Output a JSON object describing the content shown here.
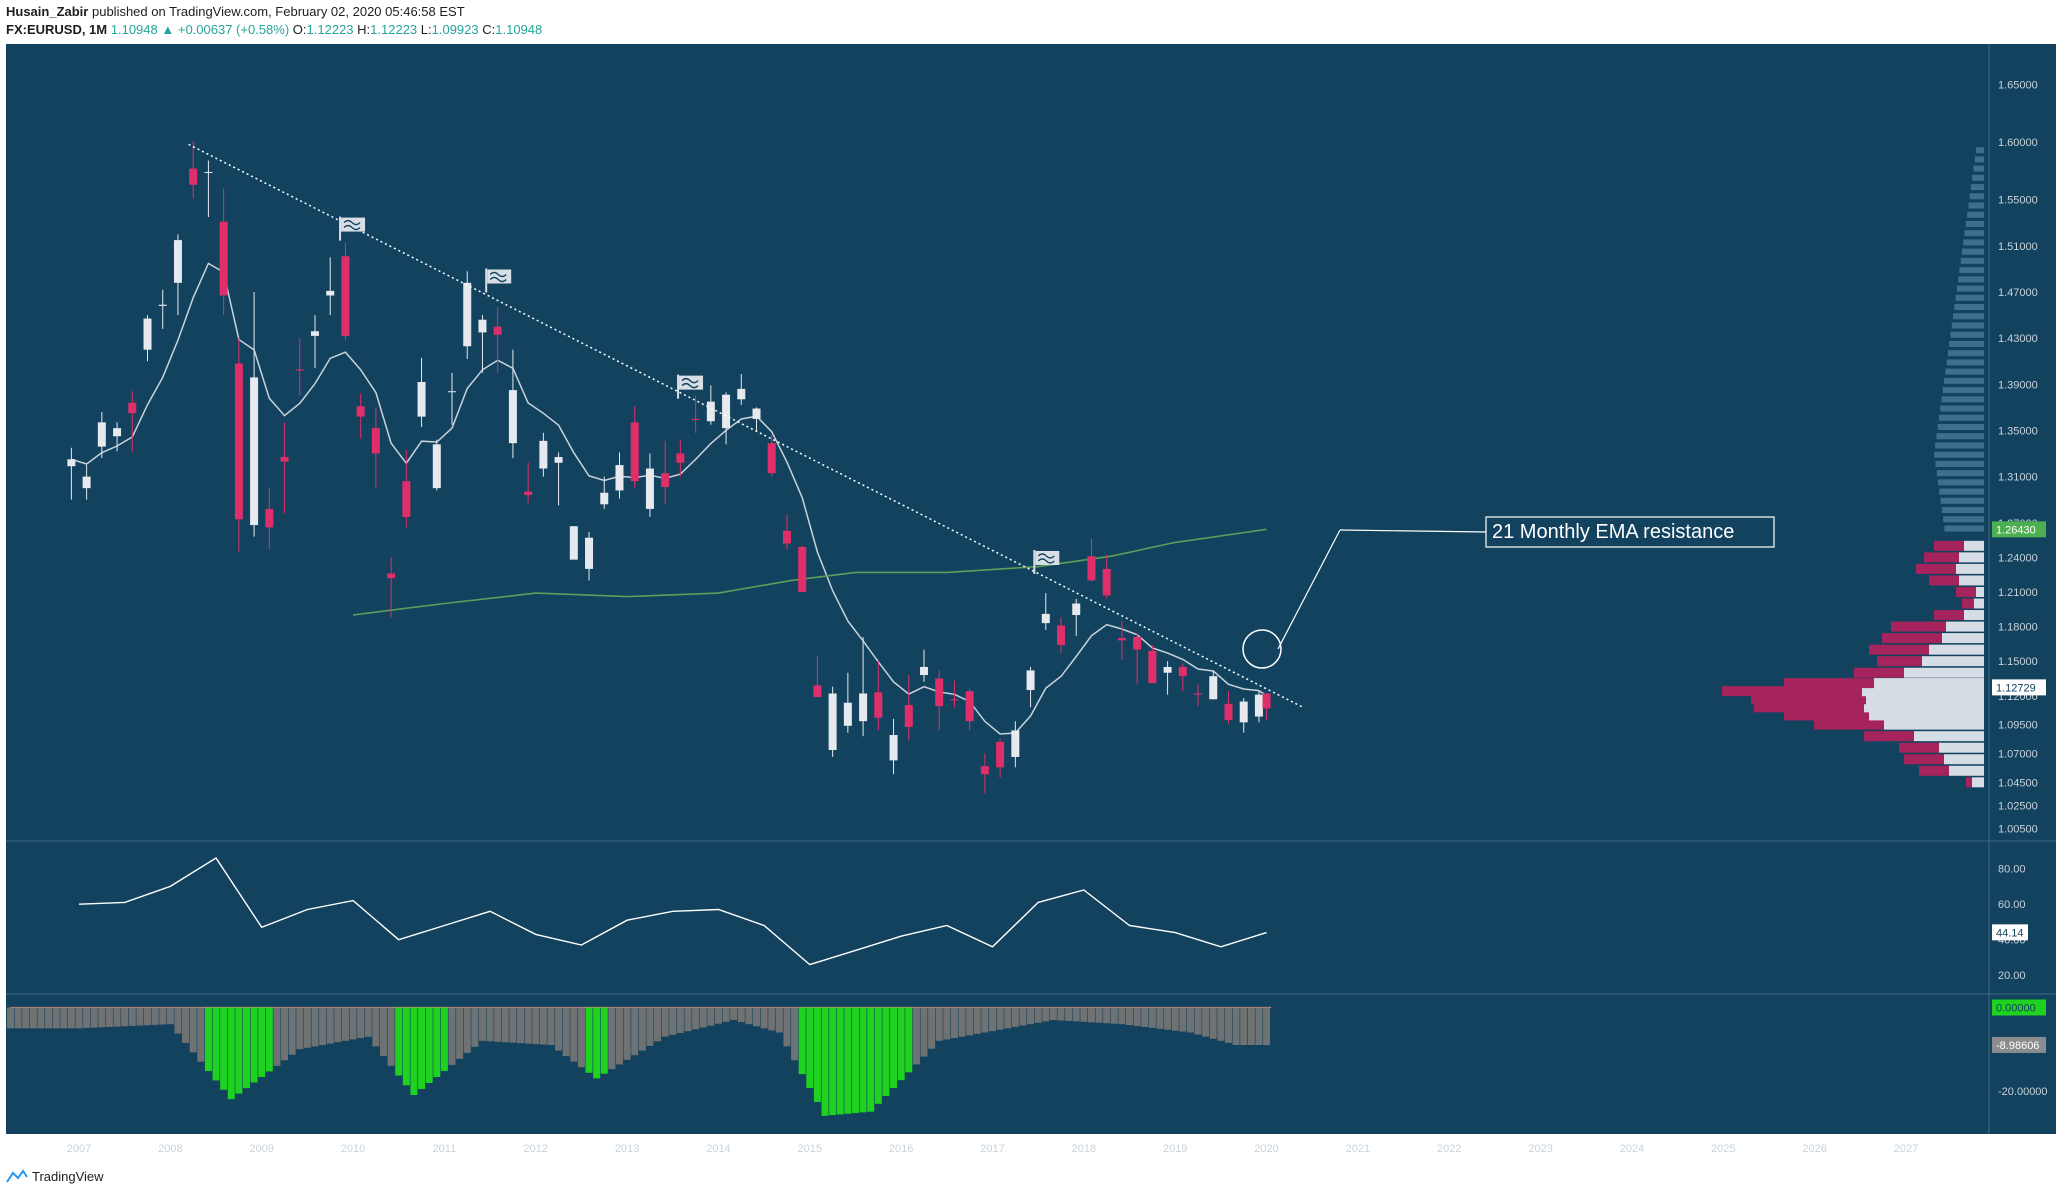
{
  "header": {
    "author": "Husain_Zabir",
    "published": "published on TradingView.com, February 02, 2020 05:46:58 EST",
    "symbol": "FX:EURUSD, 1M",
    "last": "1.10948",
    "change": "▲ +0.00637 (+0.58%)",
    "open_label": "O:",
    "open": "1.12223",
    "high_label": "H:",
    "high": "1.12223",
    "low_label": "L:",
    "low": "1.09923",
    "close_label": "C:",
    "close": "1.10948"
  },
  "footer": {
    "brand": "TradingView"
  },
  "colors": {
    "background": "#12425e",
    "up_candle": "#e6e9ee",
    "down_candle": "#de2f6a",
    "ema21": "#c9d3dc",
    "sma200": "#5f9e5a",
    "trendline": "#ffffff",
    "rsi": "#ffffff",
    "hist_gray": "#6f7273",
    "hist_green": "#1fd21f",
    "vp_up": "#d7dde5",
    "vp_down": "#a5245e",
    "price_tag_green": "#4caf50"
  },
  "annotation": {
    "text": "21 Monthly EMA resistance"
  },
  "chart_data": [
    {
      "type": "candlestick",
      "title": "",
      "xlabel": "",
      "ylabel": "",
      "x_ticks": [
        "2007",
        "2008",
        "2009",
        "2010",
        "2011",
        "2012",
        "2013",
        "2014",
        "2015",
        "2016",
        "2017",
        "2018",
        "2019",
        "2020",
        "2021",
        "2022",
        "2023",
        "2024",
        "2025",
        "2026",
        "2027"
      ],
      "y_ticks": [
        "1.65000",
        "1.60000",
        "1.55000",
        "1.51000",
        "1.47000",
        "1.43000",
        "1.39000",
        "1.35000",
        "1.31000",
        "1.27000",
        "1.24000",
        "1.21000",
        "1.18000",
        "1.15000",
        "1.12000",
        "1.09500",
        "1.07000",
        "1.04500",
        "1.02500",
        "1.00500"
      ],
      "ylim": [
        0.995,
        1.685
      ],
      "price_labels": {
        "sma200_last": "1.26430",
        "ema21_last": "1.12729"
      },
      "ohlc": {
        "open": 1.12223,
        "high": 1.12223,
        "low": 1.09923,
        "close": 1.10948
      },
      "series": [
        {
          "name": "",
          "points": [
            [
              "2006-12",
              1.319,
              1.335,
              1.29,
              1.325
            ],
            [
              "2007-02",
              1.3,
              1.32,
              1.29,
              1.31
            ],
            [
              "2007-04",
              1.336,
              1.366,
              1.326,
              1.357
            ],
            [
              "2007-06",
              1.345,
              1.357,
              1.332,
              1.352
            ],
            [
              "2007-08",
              1.374,
              1.384,
              1.331,
              1.365
            ],
            [
              "2007-10",
              1.42,
              1.45,
              1.41,
              1.447
            ],
            [
              "2007-12",
              1.458,
              1.472,
              1.438,
              1.459
            ],
            [
              "2008-02",
              1.478,
              1.52,
              1.45,
              1.515
            ],
            [
              "2008-04",
              1.577,
              1.601,
              1.551,
              1.563
            ],
            [
              "2008-06",
              1.574,
              1.584,
              1.535,
              1.574
            ],
            [
              "2008-08",
              1.531,
              1.56,
              1.45,
              1.467
            ],
            [
              "2008-10",
              1.408,
              1.43,
              1.245,
              1.273
            ],
            [
              "2008-12",
              1.268,
              1.47,
              1.258,
              1.396
            ],
            [
              "2009-02",
              1.282,
              1.3,
              1.247,
              1.266
            ],
            [
              "2009-04",
              1.327,
              1.357,
              1.278,
              1.323
            ],
            [
              "2009-06",
              1.403,
              1.43,
              1.38,
              1.402
            ],
            [
              "2009-08",
              1.432,
              1.45,
              1.404,
              1.436
            ],
            [
              "2009-10",
              1.467,
              1.5,
              1.45,
              1.471
            ],
            [
              "2009-12",
              1.501,
              1.513,
              1.428,
              1.432
            ],
            [
              "2010-02",
              1.371,
              1.382,
              1.343,
              1.362
            ],
            [
              "2010-04",
              1.352,
              1.37,
              1.3,
              1.33
            ],
            [
              "2010-06",
              1.226,
              1.24,
              1.188,
              1.222
            ],
            [
              "2010-08",
              1.306,
              1.333,
              1.266,
              1.275
            ],
            [
              "2010-10",
              1.362,
              1.413,
              1.353,
              1.392
            ],
            [
              "2010-12",
              1.3,
              1.342,
              1.298,
              1.338
            ],
            [
              "2011-02",
              1.384,
              1.4,
              1.355,
              1.384
            ],
            [
              "2011-04",
              1.423,
              1.488,
              1.412,
              1.478
            ],
            [
              "2011-06",
              1.435,
              1.45,
              1.4,
              1.446
            ],
            [
              "2011-08",
              1.44,
              1.457,
              1.4,
              1.433
            ],
            [
              "2011-10",
              1.339,
              1.42,
              1.326,
              1.385
            ],
            [
              "2011-12",
              1.297,
              1.322,
              1.287,
              1.294
            ],
            [
              "2012-02",
              1.317,
              1.348,
              1.31,
              1.341
            ],
            [
              "2012-04",
              1.322,
              1.331,
              1.285,
              1.327
            ],
            [
              "2012-06",
              1.238,
              1.267,
              1.24,
              1.267
            ],
            [
              "2012-08",
              1.23,
              1.262,
              1.22,
              1.257
            ],
            [
              "2012-10",
              1.286,
              1.31,
              1.282,
              1.296
            ],
            [
              "2012-12",
              1.298,
              1.331,
              1.291,
              1.32
            ],
            [
              "2013-02",
              1.357,
              1.371,
              1.3,
              1.306
            ],
            [
              "2013-04",
              1.282,
              1.33,
              1.275,
              1.317
            ],
            [
              "2013-06",
              1.313,
              1.341,
              1.286,
              1.301
            ],
            [
              "2013-08",
              1.33,
              1.342,
              1.31,
              1.322
            ],
            [
              "2013-10",
              1.36,
              1.38,
              1.348,
              1.359
            ],
            [
              "2013-12",
              1.358,
              1.389,
              1.355,
              1.375
            ],
            [
              "2014-02",
              1.352,
              1.383,
              1.338,
              1.381
            ],
            [
              "2014-04",
              1.377,
              1.399,
              1.372,
              1.386
            ],
            [
              "2014-06",
              1.36,
              1.37,
              1.35,
              1.369
            ],
            [
              "2014-08",
              1.339,
              1.346,
              1.31,
              1.313
            ],
            [
              "2014-10",
              1.263,
              1.277,
              1.247,
              1.252
            ],
            [
              "2014-12",
              1.249,
              1.25,
              1.21,
              1.21
            ],
            [
              "2015-02",
              1.129,
              1.155,
              1.12,
              1.119
            ],
            [
              "2015-04",
              1.073,
              1.128,
              1.067,
              1.122
            ],
            [
              "2015-06",
              1.094,
              1.14,
              1.088,
              1.114
            ],
            [
              "2015-08",
              1.098,
              1.171,
              1.085,
              1.122
            ],
            [
              "2015-10",
              1.123,
              1.15,
              1.09,
              1.101
            ],
            [
              "2015-12",
              1.064,
              1.1,
              1.052,
              1.086
            ],
            [
              "2016-02",
              1.112,
              1.138,
              1.081,
              1.093
            ],
            [
              "2016-04",
              1.138,
              1.16,
              1.132,
              1.145
            ],
            [
              "2016-06",
              1.135,
              1.142,
              1.09,
              1.111
            ],
            [
              "2016-08",
              1.117,
              1.133,
              1.11,
              1.116
            ],
            [
              "2016-10",
              1.124,
              1.126,
              1.09,
              1.098
            ],
            [
              "2016-12",
              1.059,
              1.07,
              1.035,
              1.052
            ],
            [
              "2017-02",
              1.08,
              1.083,
              1.049,
              1.058
            ],
            [
              "2017-04",
              1.067,
              1.098,
              1.058,
              1.09
            ],
            [
              "2017-06",
              1.125,
              1.145,
              1.11,
              1.142
            ],
            [
              "2017-08",
              1.183,
              1.209,
              1.177,
              1.191
            ],
            [
              "2017-10",
              1.181,
              1.188,
              1.157,
              1.164
            ],
            [
              "2017-12",
              1.19,
              1.204,
              1.172,
              1.2
            ],
            [
              "2018-02",
              1.241,
              1.256,
              1.219,
              1.22
            ],
            [
              "2018-04",
              1.23,
              1.242,
              1.204,
              1.207
            ],
            [
              "2018-06",
              1.17,
              1.185,
              1.151,
              1.168
            ],
            [
              "2018-08",
              1.171,
              1.174,
              1.13,
              1.16
            ],
            [
              "2018-10",
              1.159,
              1.164,
              1.132,
              1.131
            ],
            [
              "2018-12",
              1.14,
              1.15,
              1.121,
              1.145
            ],
            [
              "2019-02",
              1.145,
              1.148,
              1.124,
              1.137
            ],
            [
              "2019-04",
              1.122,
              1.13,
              1.111,
              1.121
            ],
            [
              "2019-06",
              1.117,
              1.142,
              1.117,
              1.137
            ],
            [
              "2019-08",
              1.113,
              1.124,
              1.096,
              1.099
            ],
            [
              "2019-10",
              1.097,
              1.118,
              1.088,
              1.115
            ],
            [
              "2019-12",
              1.102,
              1.124,
              1.097,
              1.121
            ],
            [
              "2020-01",
              1.122,
              1.122,
              1.099,
              1.109
            ]
          ]
        }
      ]
    },
    {
      "type": "line",
      "title": "",
      "y_ticks": [
        "80.00",
        "60.00",
        "40.00",
        "20.00"
      ],
      "ylim": [
        10,
        95
      ],
      "last_label": "44.14",
      "series": [
        {
          "name": "",
          "x": [
            "2007-01",
            "2007-07",
            "2008-01",
            "2008-07",
            "2009-01",
            "2009-07",
            "2010-01",
            "2010-07",
            "2011-01",
            "2011-07",
            "2012-01",
            "2012-07",
            "2013-01",
            "2013-07",
            "2014-01",
            "2014-07",
            "2015-01",
            "2015-07",
            "2016-01",
            "2016-07",
            "2017-01",
            "2017-07",
            "2018-01",
            "2018-07",
            "2019-01",
            "2019-07",
            "2020-01"
          ],
          "values": [
            60,
            61,
            70,
            86,
            47,
            57,
            62,
            40,
            48,
            56,
            43,
            37,
            51,
            56,
            57,
            48,
            26,
            34,
            42,
            48,
            36,
            61,
            68,
            48,
            44,
            36,
            44
          ]
        }
      ]
    },
    {
      "type": "bar",
      "title": "",
      "y_ticks": [
        "0.00000",
        "-20.00000"
      ],
      "ylim": [
        -27,
        3
      ],
      "last_label": "-8.98606",
      "zero_label": "0.00000",
      "series": [
        {
          "name": "",
          "x": [
            "2007",
            "2008",
            "2008-09",
            "2009-06",
            "2010-03",
            "2010-09",
            "2011-06",
            "2012-03",
            "2012-09",
            "2013-06",
            "2014-03",
            "2014-09",
            "2015-03",
            "2015-09",
            "2016-06",
            "2017-03",
            "2017-09",
            "2018-06",
            "2019-03",
            "2019-09",
            "2020-01"
          ],
          "values": [
            -5,
            -4,
            -22,
            -10,
            -7,
            -21,
            -8,
            -9,
            -17,
            -7,
            -3,
            -6,
            -26,
            -25,
            -8,
            -5,
            -3,
            -4,
            -6,
            -9,
            -9
          ]
        }
      ]
    }
  ]
}
